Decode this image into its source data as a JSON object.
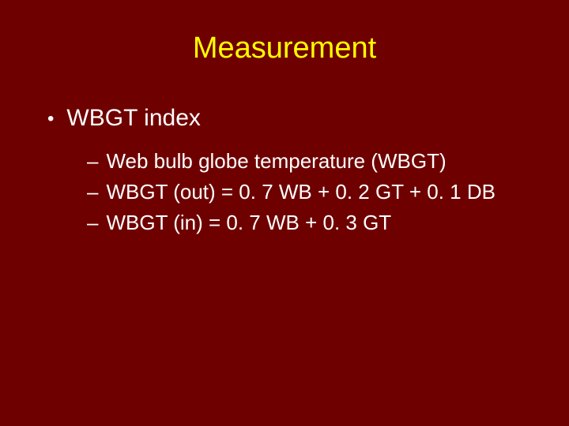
{
  "slide": {
    "background_color": "#6f0000",
    "title": {
      "text": "Measurement",
      "color": "#ffff00",
      "font_size_pt": 38
    },
    "bullets": {
      "level1": {
        "marker": "•",
        "text": "WBGT index",
        "color": "#ffffff",
        "font_size_pt": 30
      },
      "level2": [
        {
          "marker": "–",
          "text": "Web bulb globe temperature (WBGT)"
        },
        {
          "marker": "–",
          "text": "WBGT (out) = 0. 7 WB + 0. 2 GT + 0. 1 DB"
        },
        {
          "marker": "–",
          "text": "WBGT (in) = 0. 7 WB + 0. 3 GT"
        }
      ],
      "level2_style": {
        "color": "#ffffff",
        "font_size_pt": 26
      }
    }
  }
}
